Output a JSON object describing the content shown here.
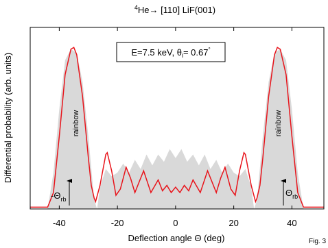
{
  "chart_data": {
    "type": "line",
    "title_superscript": "4",
    "title": "He→ [110] LiF(001)",
    "xlabel": "Deflection angle Θ (deg)",
    "ylabel": "Differential probability (arb. units)",
    "annotation": {
      "text": "E=7.5 keV, θ",
      "sub": "i",
      "rest": "= 0.67",
      "sup": "°"
    },
    "rainbow_left": "rainbow",
    "rainbow_right": "rainbow",
    "theta_left": {
      "text": "-Θ",
      "sub": "rb"
    },
    "theta_right": {
      "text": "Θ",
      "sub": "rb"
    },
    "figure_label": "Fig. 3",
    "xlim": [
      -50,
      51
    ],
    "ylim": [
      0,
      1
    ],
    "xticks": [
      -40,
      -20,
      0,
      20,
      40
    ],
    "series": [
      {
        "style": "area",
        "color": "#d9d9d9",
        "x": [
          -50,
          -44,
          -42,
          -40,
          -38,
          -36,
          -34,
          -32,
          -30,
          -28,
          -27,
          -26,
          -24,
          -22,
          -20,
          -18,
          -16,
          -14,
          -12,
          -10,
          -8,
          -6,
          -4,
          -2,
          0,
          2,
          4,
          6,
          8,
          10,
          12,
          14,
          16,
          18,
          20,
          22,
          24,
          26,
          27,
          28,
          30,
          32,
          34,
          36,
          38,
          40,
          42,
          44,
          51
        ],
        "values": [
          0,
          0,
          0.2,
          0.55,
          0.82,
          0.88,
          0.86,
          0.7,
          0.4,
          0.05,
          0,
          0.12,
          0.22,
          0.18,
          0.2,
          0.25,
          0.2,
          0.27,
          0.22,
          0.3,
          0.24,
          0.3,
          0.26,
          0.33,
          0.28,
          0.33,
          0.26,
          0.3,
          0.24,
          0.3,
          0.22,
          0.27,
          0.2,
          0.25,
          0.2,
          0.18,
          0.22,
          0.12,
          0,
          0.05,
          0.4,
          0.7,
          0.86,
          0.88,
          0.82,
          0.55,
          0.2,
          0,
          0
        ]
      },
      {
        "style": "line",
        "color": "#e8141b",
        "x": [
          -50,
          -44,
          -42,
          -40,
          -38,
          -36,
          -35,
          -34,
          -32,
          -30,
          -29,
          -28,
          -27.5,
          -26,
          -24,
          -23.5,
          -22,
          -20.5,
          -19,
          -17,
          -15.5,
          -14,
          -11,
          -8.5,
          -6,
          -4.5,
          -3,
          -1.5,
          0,
          1.5,
          3,
          4.5,
          6,
          8.5,
          11,
          14,
          15.5,
          17,
          19,
          20.5,
          22,
          23.5,
          24,
          26,
          27.5,
          28,
          29,
          30,
          32,
          34,
          35,
          36,
          38,
          40,
          42,
          44,
          51
        ],
        "values": [
          0.01,
          0.01,
          0.09,
          0.4,
          0.74,
          0.88,
          0.89,
          0.85,
          0.62,
          0.28,
          0.13,
          0.06,
          0.04,
          0.13,
          0.3,
          0.31,
          0.21,
          0.075,
          0.11,
          0.23,
          0.17,
          0.09,
          0.21,
          0.09,
          0.16,
          0.1,
          0.13,
          0.09,
          0.12,
          0.09,
          0.13,
          0.1,
          0.16,
          0.09,
          0.21,
          0.09,
          0.17,
          0.23,
          0.11,
          0.075,
          0.21,
          0.31,
          0.3,
          0.13,
          0.04,
          0.06,
          0.13,
          0.28,
          0.62,
          0.85,
          0.89,
          0.88,
          0.74,
          0.4,
          0.09,
          0.01,
          0.01
        ]
      }
    ]
  }
}
